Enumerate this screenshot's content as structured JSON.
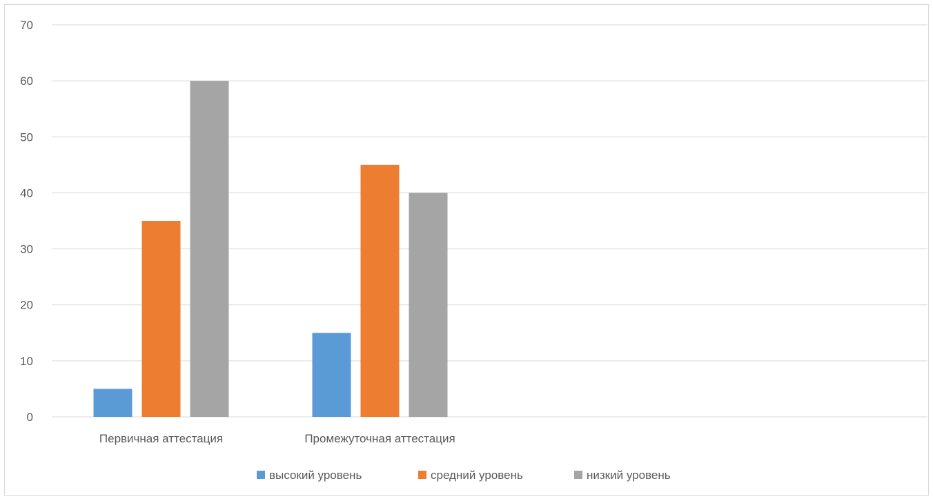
{
  "chart_data": {
    "type": "bar",
    "title": "",
    "xlabel": "",
    "ylabel": "",
    "categories": [
      "Первичная аттестация",
      "Промежуточная аттестация"
    ],
    "ylim": [
      0,
      70
    ],
    "yticks": [
      0,
      10,
      20,
      30,
      40,
      50,
      60,
      70
    ],
    "grid": true,
    "legend_position": "bottom",
    "series": [
      {
        "name": "высокий уровень",
        "color": "#5b9bd5",
        "values": [
          5,
          15
        ]
      },
      {
        "name": "средний уровень",
        "color": "#ed7d31",
        "values": [
          35,
          45
        ]
      },
      {
        "name": "низкий уровень",
        "color": "#a5a5a5",
        "values": [
          60,
          40
        ]
      }
    ]
  }
}
